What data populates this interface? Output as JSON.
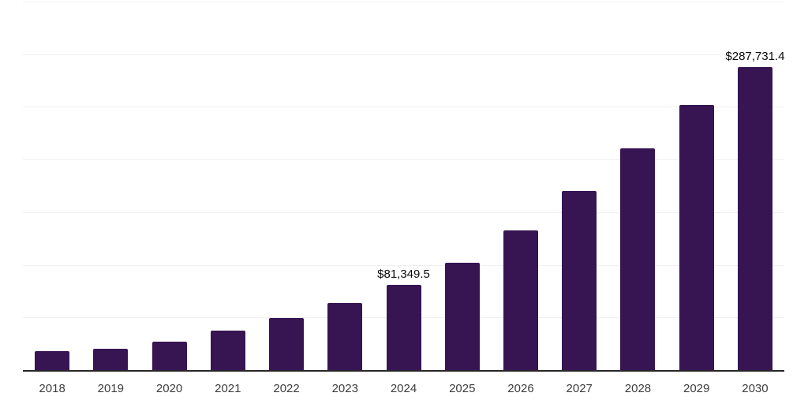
{
  "chart_data": {
    "type": "bar",
    "title": "",
    "xlabel": "",
    "ylabel": "",
    "categories": [
      "2018",
      "2019",
      "2020",
      "2021",
      "2022",
      "2023",
      "2024",
      "2025",
      "2026",
      "2027",
      "2028",
      "2029",
      "2030"
    ],
    "values": [
      18000,
      20300,
      27000,
      37500,
      49500,
      63800,
      81349.5,
      102000,
      132800,
      170300,
      210800,
      252000,
      287731.4
    ],
    "point_labels": [
      "",
      "",
      "",
      "",
      "",
      "",
      "$81,349.5",
      "",
      "",
      "",
      "",
      "",
      "$287,731.4"
    ],
    "ylim": [
      0,
      350000
    ],
    "gridlines": {
      "orientation": "horizontal",
      "step": 50000,
      "count": 7,
      "y_axis_tick_labels_visible": false
    },
    "legend": "none"
  },
  "theme": {
    "background": "#ffffff",
    "bar_color": "#371553",
    "axis_color": "#272727",
    "grid_color": "#f0f0f0",
    "tick_label_color": "#3d3d3d",
    "value_label_color": "#0a0a0a"
  }
}
